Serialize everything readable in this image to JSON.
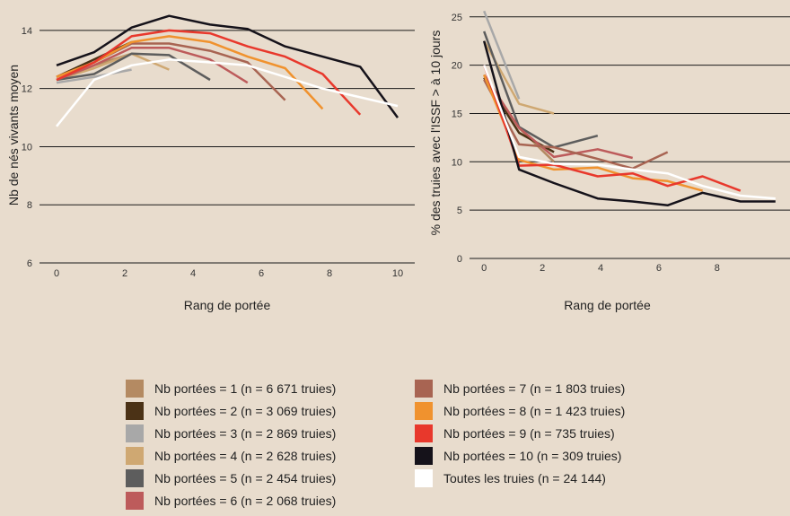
{
  "chart_data": [
    {
      "type": "line",
      "xlabel": "Rang de portée",
      "ylabel": "Nb de nés vivants moyen",
      "xlim": [
        -0.5,
        10.5
      ],
      "ylim": [
        6,
        14.8
      ],
      "xticks": [
        0,
        2,
        4,
        6,
        8,
        10
      ],
      "yticks": [
        6,
        8,
        10,
        12,
        14
      ],
      "grid": "horizontal",
      "series": [
        {
          "name": "Nb portées = 1 (n = 6 671 truies)",
          "color": "#b48a62",
          "x": [
            0,
            1.1,
            2.2
          ],
          "y": [
            12.3,
            12.8,
            13.2
          ]
        },
        {
          "name": "Nb portées = 2 (n = 3 069 truies)",
          "color": "#4b3216",
          "x": [
            0,
            1.1,
            2.2
          ],
          "y": [
            12.4,
            13.0,
            13.6
          ]
        },
        {
          "name": "Nb portées = 3 (n = 2 869 truies)",
          "color": "#a8a8a8",
          "x": [
            0,
            1.1,
            2.2
          ],
          "y": [
            12.2,
            12.4,
            12.65
          ]
        },
        {
          "name": "Nb portées = 4 (n = 2 628 truies)",
          "color": "#cfa872",
          "x": [
            0,
            1.1,
            2.2,
            3.3
          ],
          "y": [
            12.3,
            12.7,
            13.2,
            12.65
          ]
        },
        {
          "name": "Nb portées = 5 (n = 2 454 truies)",
          "color": "#5d5d5d",
          "x": [
            0,
            1.1,
            2.2,
            3.3,
            4.5
          ],
          "y": [
            12.3,
            12.5,
            13.2,
            13.15,
            12.3
          ]
        },
        {
          "name": "Nb portées = 6 (n = 2 068 truies)",
          "color": "#bd5b5b",
          "x": [
            0,
            1.1,
            2.2,
            3.3,
            4.5,
            5.6
          ],
          "y": [
            12.3,
            12.8,
            13.4,
            13.4,
            13.0,
            12.2
          ]
        },
        {
          "name": "Nb portées = 7 (n = 1 803 truies)",
          "color": "#a86452",
          "x": [
            0,
            1.1,
            2.2,
            3.3,
            4.5,
            5.6,
            6.7
          ],
          "y": [
            12.4,
            12.9,
            13.55,
            13.55,
            13.3,
            12.9,
            11.6
          ]
        },
        {
          "name": "Nb portées = 8 (n = 1 423 truies)",
          "color": "#f0922e",
          "x": [
            0,
            1.1,
            2.2,
            3.3,
            4.5,
            5.6,
            6.7,
            7.8
          ],
          "y": [
            12.4,
            12.9,
            13.6,
            13.8,
            13.6,
            13.1,
            12.7,
            11.3
          ]
        },
        {
          "name": "Nb portées = 9 (n = 735 truies)",
          "color": "#e8382c",
          "x": [
            0,
            1.1,
            2.2,
            3.3,
            4.5,
            5.6,
            6.7,
            7.8,
            8.9
          ],
          "y": [
            12.3,
            12.9,
            13.8,
            14.0,
            13.9,
            13.45,
            13.1,
            12.5,
            11.1
          ]
        },
        {
          "name": "Nb portées = 10 (n = 309 truies)",
          "color": "#15121a",
          "x": [
            0,
            1.1,
            2.2,
            3.3,
            4.5,
            5.6,
            6.7,
            7.8,
            8.9,
            10
          ],
          "y": [
            12.8,
            13.25,
            14.1,
            14.5,
            14.2,
            14.05,
            13.45,
            13.1,
            12.75,
            11.0
          ]
        },
        {
          "name": "Toutes les truies (n = 24 144)",
          "color": "#ffffff",
          "x": [
            0,
            1.1,
            2.2,
            3.3,
            4.5,
            5.6,
            6.7,
            7.8,
            8.9,
            10
          ],
          "y": [
            10.7,
            12.3,
            12.8,
            13.0,
            12.9,
            12.8,
            12.4,
            12.0,
            11.7,
            11.4
          ]
        }
      ]
    },
    {
      "type": "line",
      "xlabel": "Rang de portée",
      "ylabel": "% des truies avec l'ISSF > à 10 jours",
      "xlim": [
        -0.5,
        10.5
      ],
      "ylim": [
        0,
        26
      ],
      "xticks": [
        0,
        2,
        4,
        6,
        8
      ],
      "yticks": [
        0,
        5,
        10,
        15,
        20,
        25
      ],
      "grid": "horizontal",
      "series": [
        {
          "name": "Nb portées = 1",
          "color": "#b48a62",
          "x": [
            0,
            1.2,
            2.4
          ],
          "y": [
            19,
            13.5,
            10
          ]
        },
        {
          "name": "Nb portées = 2",
          "color": "#4b3216",
          "x": [
            0,
            1.2,
            2.4
          ],
          "y": [
            18.7,
            13,
            11
          ]
        },
        {
          "name": "Nb portées = 3",
          "color": "#a8a8a8",
          "x": [
            0,
            1.2
          ],
          "y": [
            25.6,
            16.5
          ]
        },
        {
          "name": "Nb portées = 4",
          "color": "#cfa872",
          "x": [
            0,
            1.2,
            2.4
          ],
          "y": [
            22.5,
            16,
            15
          ]
        },
        {
          "name": "Nb portées = 5",
          "color": "#5d5d5d",
          "x": [
            0,
            1.2,
            2.4,
            3.9
          ],
          "y": [
            23.5,
            13.6,
            11.5,
            12.7
          ]
        },
        {
          "name": "Nb portées = 6",
          "color": "#bd5b5b",
          "x": [
            0,
            1.2,
            2.4,
            3.9,
            5.1
          ],
          "y": [
            19,
            13.5,
            10.5,
            11.3,
            10.4
          ]
        },
        {
          "name": "Nb portées = 7",
          "color": "#a86452",
          "x": [
            0,
            1.2,
            2.4,
            3.9,
            5.1,
            6.3
          ],
          "y": [
            18.5,
            11.8,
            11.5,
            10.3,
            9.3,
            11
          ]
        },
        {
          "name": "Nb portées = 8",
          "color": "#f0922e",
          "x": [
            0,
            1.2,
            2.4,
            3.9,
            5.1,
            6.3,
            7.5
          ],
          "y": [
            19,
            10.2,
            9.2,
            9.4,
            8.3,
            8.0,
            7.0
          ]
        },
        {
          "name": "Nb portées = 9",
          "color": "#e8382c",
          "x": [
            0,
            1.2,
            2.4,
            3.9,
            5.1,
            6.3,
            7.5,
            8.8
          ],
          "y": [
            20,
            9.6,
            9.7,
            8.5,
            8.8,
            7.5,
            8.5,
            7.0
          ]
        },
        {
          "name": "Nb portées = 10",
          "color": "#15121a",
          "x": [
            0,
            1.2,
            2.4,
            3.9,
            5.1,
            6.3,
            7.5,
            8.8,
            10
          ],
          "y": [
            22.5,
            9.2,
            7.8,
            6.2,
            5.9,
            5.5,
            6.8,
            5.9,
            5.9
          ]
        },
        {
          "name": "Toutes les truies",
          "color": "#ffffff",
          "x": [
            0,
            1.2,
            2.4,
            3.9,
            5.1,
            6.3,
            7.5,
            8.8,
            10
          ],
          "y": [
            20,
            10.5,
            9.8,
            9.7,
            9.2,
            8.8,
            7.5,
            6.5,
            6.2
          ]
        }
      ]
    }
  ],
  "legend": [
    {
      "label": "Nb portées = 1 (n = 6 671 truies)",
      "color": "#b48a62"
    },
    {
      "label": "Nb portées = 2 (n = 3 069 truies)",
      "color": "#4b3216"
    },
    {
      "label": "Nb portées = 3 (n = 2 869 truies)",
      "color": "#a8a8a8"
    },
    {
      "label": "Nb portées = 4 (n = 2 628 truies)",
      "color": "#cfa872"
    },
    {
      "label": "Nb portées = 5 (n = 2 454 truies)",
      "color": "#5d5d5d"
    },
    {
      "label": "Nb portées = 6 (n = 2 068 truies)",
      "color": "#bd5b5b"
    },
    {
      "label": "Nb portées = 7 (n = 1 803 truies)",
      "color": "#a86452"
    },
    {
      "label": "Nb portées = 8 (n = 1 423 truies)",
      "color": "#f0922e"
    },
    {
      "label": "Nb portées = 9 (n = 735 truies)",
      "color": "#e8382c"
    },
    {
      "label": "Nb portées = 10 (n = 309 truies)",
      "color": "#15121a"
    },
    {
      "label": "Toutes les truies (n = 24 144)",
      "color": "#ffffff"
    }
  ]
}
